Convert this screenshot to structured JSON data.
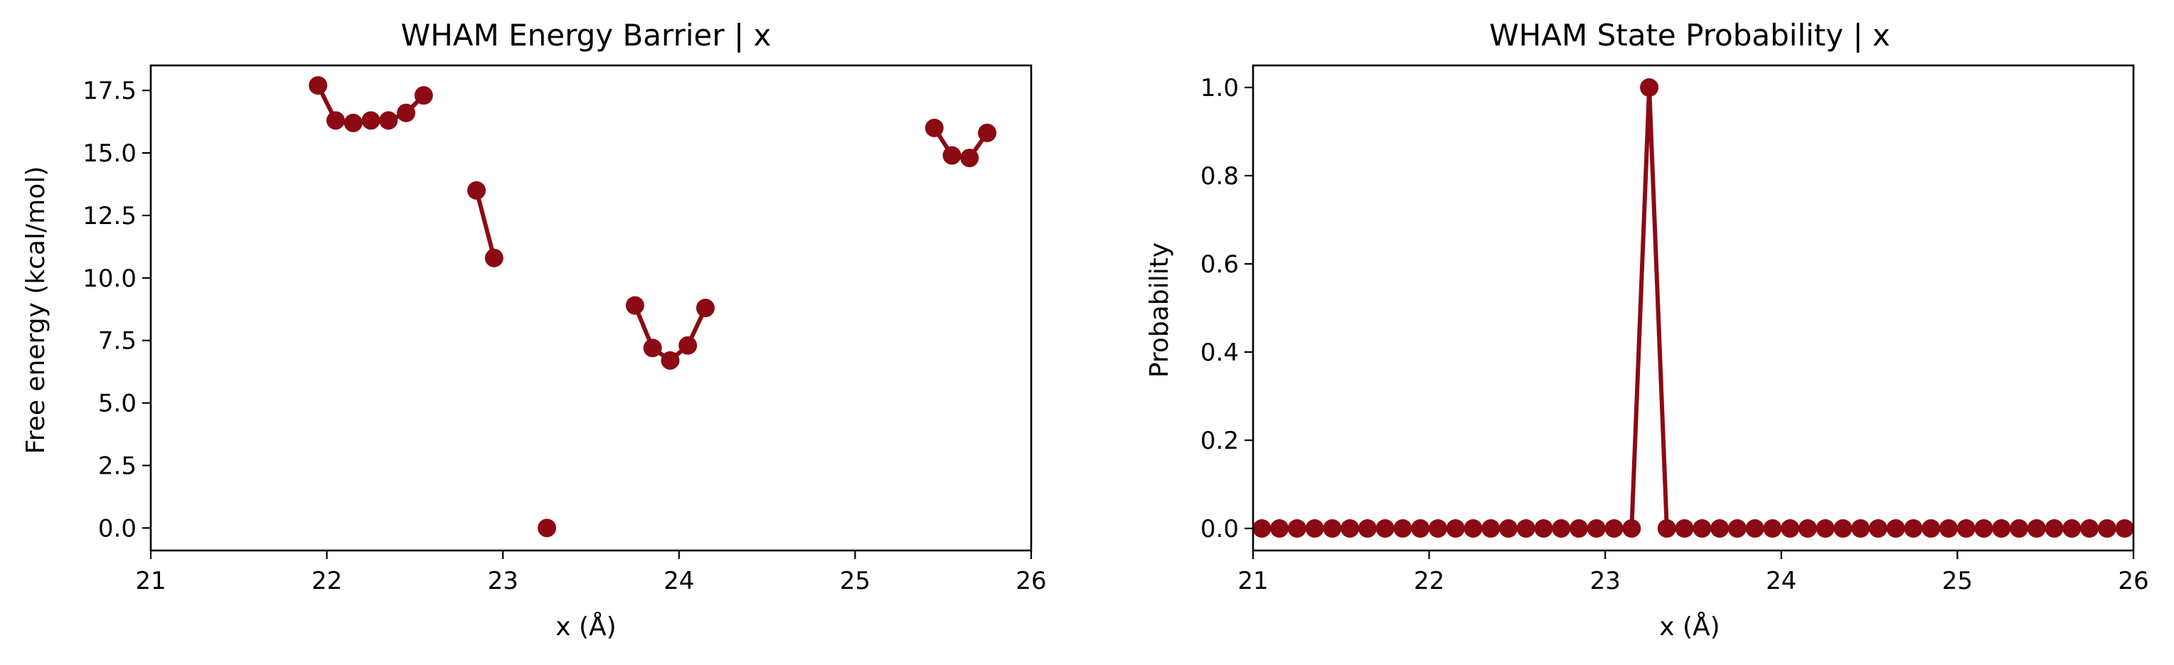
{
  "colors": {
    "series": "#8b0a14",
    "axes": "#000000",
    "background": "#ffffff"
  },
  "chart_data": [
    {
      "type": "line",
      "title": "WHAM Energy Barrier | x",
      "xlabel": "x (Å)",
      "ylabel": "Free energy (kcal/mol)",
      "xlim": [
        21,
        26
      ],
      "ylim": [
        -0.9,
        18.5
      ],
      "xticks": [
        21,
        22,
        23,
        24,
        25,
        26
      ],
      "xtick_labels": [
        "21",
        "22",
        "23",
        "24",
        "25",
        "26"
      ],
      "yticks": [
        0,
        2.5,
        5,
        7.5,
        10,
        12.5,
        15,
        17.5
      ],
      "ytick_labels": [
        "0.0",
        "2.5",
        "5.0",
        "7.5",
        "10.0",
        "12.5",
        "15.0",
        "17.5"
      ],
      "grid": false,
      "series": [
        {
          "x": [
            21.05,
            21.15,
            21.25,
            21.35,
            21.45,
            21.55,
            21.65,
            21.75,
            21.85,
            21.95,
            22.05,
            22.15,
            22.25,
            22.35,
            22.45,
            22.55,
            22.65,
            22.75,
            22.85,
            22.95,
            23.05,
            23.15,
            23.25,
            23.35,
            23.45,
            23.55,
            23.65,
            23.75,
            23.85,
            23.95,
            24.05,
            24.15,
            24.25,
            24.35,
            24.45,
            24.55,
            24.65,
            24.75,
            24.85,
            24.95,
            25.05,
            25.15,
            25.25,
            25.35,
            25.45,
            25.55,
            25.65,
            25.75,
            25.85,
            25.95
          ],
          "y": [
            null,
            null,
            null,
            null,
            null,
            null,
            null,
            null,
            null,
            17.7,
            16.3,
            16.2,
            16.3,
            16.3,
            16.6,
            17.3,
            null,
            null,
            13.5,
            10.8,
            null,
            null,
            0.0,
            null,
            null,
            null,
            null,
            8.9,
            7.2,
            6.7,
            7.3,
            8.8,
            null,
            null,
            null,
            null,
            null,
            null,
            null,
            null,
            null,
            null,
            null,
            null,
            16.0,
            14.9,
            14.8,
            15.8,
            null,
            null
          ]
        }
      ]
    },
    {
      "type": "line",
      "title": "WHAM State Probability | x",
      "xlabel": "x (Å)",
      "ylabel": "Probability",
      "xlim": [
        21,
        26
      ],
      "ylim": [
        -0.05,
        1.05
      ],
      "xticks": [
        21,
        22,
        23,
        24,
        25,
        26
      ],
      "xtick_labels": [
        "21",
        "22",
        "23",
        "24",
        "25",
        "26"
      ],
      "yticks": [
        0,
        0.2,
        0.4,
        0.6,
        0.8,
        1.0
      ],
      "ytick_labels": [
        "0.0",
        "0.2",
        "0.4",
        "0.6",
        "0.8",
        "1.0"
      ],
      "grid": false,
      "series": [
        {
          "x": [
            21.05,
            21.15,
            21.25,
            21.35,
            21.45,
            21.55,
            21.65,
            21.75,
            21.85,
            21.95,
            22.05,
            22.15,
            22.25,
            22.35,
            22.45,
            22.55,
            22.65,
            22.75,
            22.85,
            22.95,
            23.05,
            23.15,
            23.25,
            23.35,
            23.45,
            23.55,
            23.65,
            23.75,
            23.85,
            23.95,
            24.05,
            24.15,
            24.25,
            24.35,
            24.45,
            24.55,
            24.65,
            24.75,
            24.85,
            24.95,
            25.05,
            25.15,
            25.25,
            25.35,
            25.45,
            25.55,
            25.65,
            25.75,
            25.85,
            25.95
          ],
          "y": [
            0,
            0,
            0,
            0,
            0,
            0,
            0,
            0,
            0,
            0,
            0,
            0,
            0,
            0,
            0,
            0,
            0,
            0,
            0,
            0,
            0,
            0,
            1.0,
            0,
            0,
            0,
            0,
            0,
            0,
            0,
            0,
            0,
            0,
            0,
            0,
            0,
            0,
            0,
            0,
            0,
            0,
            0,
            0,
            0,
            0,
            0,
            0,
            0,
            0,
            0
          ]
        }
      ]
    }
  ]
}
